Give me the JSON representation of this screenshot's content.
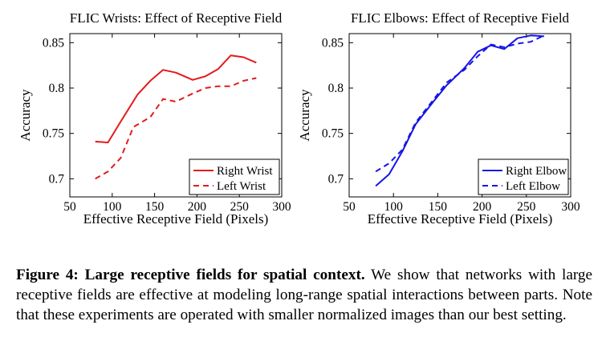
{
  "chart_data": [
    {
      "type": "line",
      "title": "FLIC Wrists: Effect of Receptive Field",
      "xlabel": "Effective Receptive Field (Pixels)",
      "ylabel": "Accuracy",
      "xlim": [
        50,
        300
      ],
      "ylim": [
        0.68,
        0.86
      ],
      "xticks": [
        50,
        100,
        150,
        200,
        250,
        300
      ],
      "yticks": [
        0.7,
        0.75,
        0.8,
        0.85
      ],
      "ytick_labels": [
        "0.7",
        "0.75",
        "0.8",
        "0.85"
      ],
      "grid": false,
      "legend_position": "lower-right",
      "series": [
        {
          "name": "Right Wrist",
          "color": "#e31a1c",
          "dash": "solid",
          "x": [
            80,
            95,
            110,
            130,
            145,
            160,
            175,
            195,
            210,
            225,
            240,
            255,
            270
          ],
          "y": [
            0.741,
            0.74,
            0.763,
            0.793,
            0.808,
            0.82,
            0.817,
            0.809,
            0.813,
            0.821,
            0.836,
            0.834,
            0.828
          ]
        },
        {
          "name": "Left Wrist",
          "color": "#e31a1c",
          "dash": "dashed",
          "x": [
            80,
            95,
            110,
            125,
            145,
            160,
            175,
            195,
            210,
            225,
            240,
            255,
            270
          ],
          "y": [
            0.7,
            0.708,
            0.723,
            0.757,
            0.768,
            0.788,
            0.785,
            0.794,
            0.8,
            0.802,
            0.802,
            0.808,
            0.811
          ]
        }
      ]
    },
    {
      "type": "line",
      "title": "FLIC Elbows: Effect of Receptive Field",
      "xlabel": "Effective Receptive Field (Pixels)",
      "ylabel": "Accuracy",
      "xlim": [
        50,
        300
      ],
      "ylim": [
        0.68,
        0.86
      ],
      "xticks": [
        50,
        100,
        150,
        200,
        250,
        300
      ],
      "yticks": [
        0.7,
        0.75,
        0.8,
        0.85
      ],
      "ytick_labels": [
        "0.7",
        "0.75",
        "0.8",
        "0.85"
      ],
      "grid": false,
      "legend_position": "lower-right",
      "series": [
        {
          "name": "Right Elbow",
          "color": "#1515e6",
          "dash": "solid",
          "x": [
            80,
            95,
            110,
            125,
            145,
            160,
            180,
            195,
            210,
            225,
            240,
            255,
            270
          ],
          "y": [
            0.692,
            0.705,
            0.73,
            0.76,
            0.785,
            0.803,
            0.822,
            0.84,
            0.847,
            0.843,
            0.855,
            0.858,
            0.857
          ]
        },
        {
          "name": "Left Elbow",
          "color": "#1515e6",
          "dash": "dashed",
          "x": [
            80,
            95,
            110,
            125,
            145,
            160,
            180,
            195,
            210,
            225,
            240,
            255,
            270
          ],
          "y": [
            0.708,
            0.717,
            0.732,
            0.762,
            0.787,
            0.806,
            0.82,
            0.835,
            0.848,
            0.845,
            0.849,
            0.851,
            0.858
          ]
        }
      ]
    }
  ],
  "caption": {
    "label": "Figure 4:",
    "heading": "Large receptive fields for spatial context.",
    "body": "We show that networks with large receptive fields are effective at modeling long-range spatial interactions between parts. Note that these experiments are operated with smaller normalized images than our best setting."
  }
}
